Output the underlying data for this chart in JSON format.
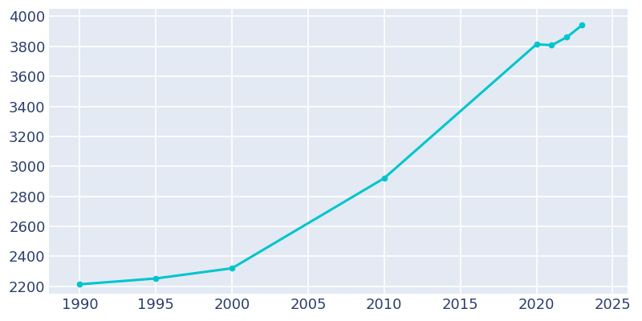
{
  "years": [
    1990,
    1995,
    2000,
    2010,
    2020,
    2021,
    2022,
    2023
  ],
  "population": [
    2213,
    2252,
    2320,
    2921,
    3814,
    3808,
    3862,
    3942
  ],
  "line_color": "#00C5CD",
  "fig_bg_color": "#FFFFFF",
  "plot_bg_color": "#E3EAF4",
  "grid_color": "#FFFFFF",
  "text_color": "#2C3E6B",
  "xlim": [
    1988,
    2026
  ],
  "ylim": [
    2150,
    4050
  ],
  "yticks": [
    2200,
    2400,
    2600,
    2800,
    3000,
    3200,
    3400,
    3600,
    3800,
    4000
  ],
  "xticks": [
    1990,
    1995,
    2000,
    2005,
    2010,
    2015,
    2020,
    2025
  ],
  "line_width": 2.2,
  "marker": "o",
  "marker_size": 4.5,
  "tick_fontsize": 13
}
